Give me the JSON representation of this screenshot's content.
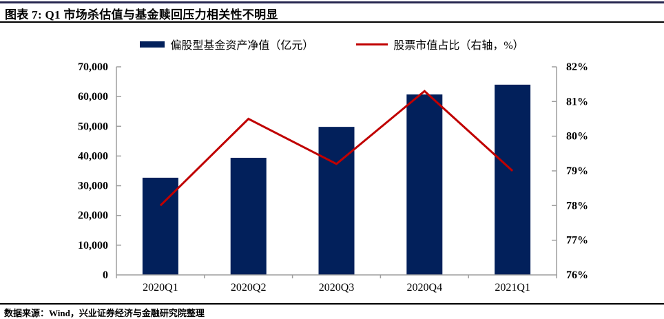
{
  "header": {
    "title": "图表 7: Q1 市场杀估值与基金赎回压力相关性不明显"
  },
  "legend": {
    "items": [
      {
        "label": "偏股型基金资产净值（亿元）",
        "swatch": "bar",
        "color": "#02205b"
      },
      {
        "label": "股票市值占比（右轴，%）",
        "swatch": "line",
        "color": "#c00000"
      }
    ]
  },
  "footer": {
    "source": "数据来源：Wind，兴业证券经济与金融研究院整理"
  },
  "colors": {
    "bar_fill": "#02205b",
    "line_stroke": "#c00000",
    "axis_line": "#9e9e9e",
    "top_rule": "#26264f",
    "text": "#000000"
  },
  "chart_data": {
    "type": "bar",
    "categories": [
      "2020Q1",
      "2020Q2",
      "2020Q3",
      "2020Q4",
      "2021Q1"
    ],
    "series": [
      {
        "name": "偏股型基金资产净值（亿元）",
        "type": "bar",
        "axis": "left",
        "color": "#02205b",
        "values": [
          32700,
          39400,
          49800,
          60700,
          64000
        ]
      },
      {
        "name": "股票市值占比（右轴，%）",
        "type": "line",
        "axis": "right",
        "color": "#c00000",
        "values": [
          78.0,
          80.5,
          79.2,
          81.3,
          79.0
        ]
      }
    ],
    "y_left": {
      "min": 0,
      "max": 70000,
      "step": 10000,
      "comma_format": true
    },
    "y_right": {
      "min": 76,
      "max": 82,
      "step": 1,
      "suffix": "%"
    },
    "grid": false,
    "legend_position": "top"
  }
}
